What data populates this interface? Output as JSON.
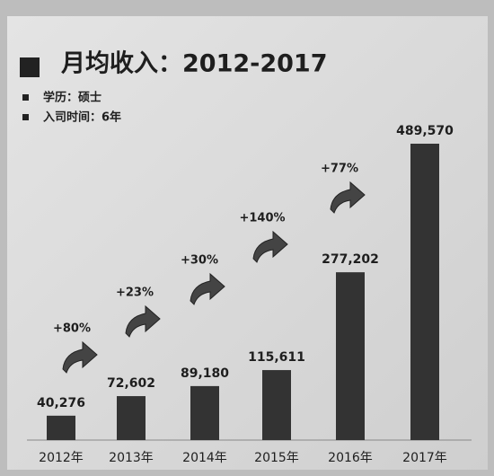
{
  "chart_data": {
    "type": "bar",
    "title": "月均收入：2012-2017",
    "notes": [
      "学历：硕士",
      "入司时间：6年"
    ],
    "categories": [
      "2012年",
      "2013年",
      "2014年",
      "2015年",
      "2016年",
      "2017年"
    ],
    "values": [
      40276,
      72602,
      89180,
      115611,
      277202,
      489570
    ],
    "value_labels": [
      "40,276",
      "72,602",
      "89,180",
      "115,611",
      "277,202",
      "489,570"
    ],
    "color": "#333333",
    "annotations": [
      "+80%",
      "+23%",
      "+30%",
      "+140%",
      "+77%"
    ]
  }
}
